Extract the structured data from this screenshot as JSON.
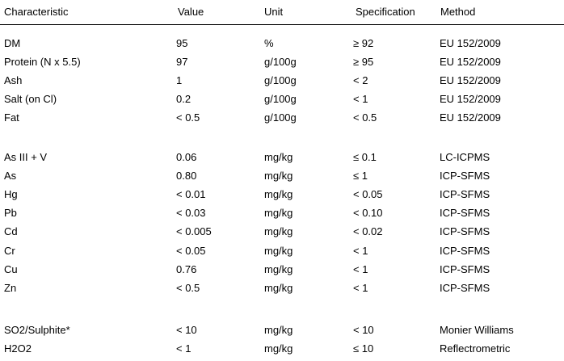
{
  "header": [
    "Characteristic",
    "Value",
    "Unit",
    "Specification",
    "Method"
  ],
  "groups": [
    [
      [
        "DM",
        "95",
        "%",
        "≥ 92",
        "EU 152/2009"
      ],
      [
        "Protein (N x 5.5)",
        "97",
        "g/100g",
        "≥ 95",
        "EU 152/2009"
      ],
      [
        "Ash",
        "1",
        "g/100g",
        "< 2",
        "EU 152/2009"
      ],
      [
        "Salt (on Cl)",
        "0.2",
        "g/100g",
        "< 1",
        "EU 152/2009"
      ],
      [
        "Fat",
        "< 0.5",
        "g/100g",
        "< 0.5",
        "EU 152/2009"
      ]
    ],
    [
      [
        "As III + V",
        "0.06",
        "mg/kg",
        "≤ 0.1",
        "LC-ICPMS"
      ],
      [
        "As",
        "0.80",
        "mg/kg",
        "≤ 1",
        "ICP-SFMS"
      ],
      [
        "Hg",
        "< 0.01",
        "mg/kg",
        "< 0.05",
        "ICP-SFMS"
      ],
      [
        "Pb",
        "< 0.03",
        "mg/kg",
        "< 0.10",
        "ICP-SFMS"
      ],
      [
        "Cd",
        "< 0.005",
        "mg/kg",
        "< 0.02",
        "ICP-SFMS"
      ],
      [
        "Cr",
        "< 0.05",
        "mg/kg",
        "< 1",
        "ICP-SFMS"
      ],
      [
        "Cu",
        "0.76",
        "mg/kg",
        "< 1",
        "ICP-SFMS"
      ],
      [
        "Zn",
        "< 0.5",
        "mg/kg",
        "< 1",
        "ICP-SFMS"
      ]
    ],
    [
      [
        "SO2/Sulphite*",
        "< 10",
        "mg/kg",
        "< 10",
        "Monier Williams"
      ],
      [
        "H2O2",
        "< 1",
        "mg/kg",
        "≤ 10",
        "Reflectrometric"
      ]
    ]
  ]
}
